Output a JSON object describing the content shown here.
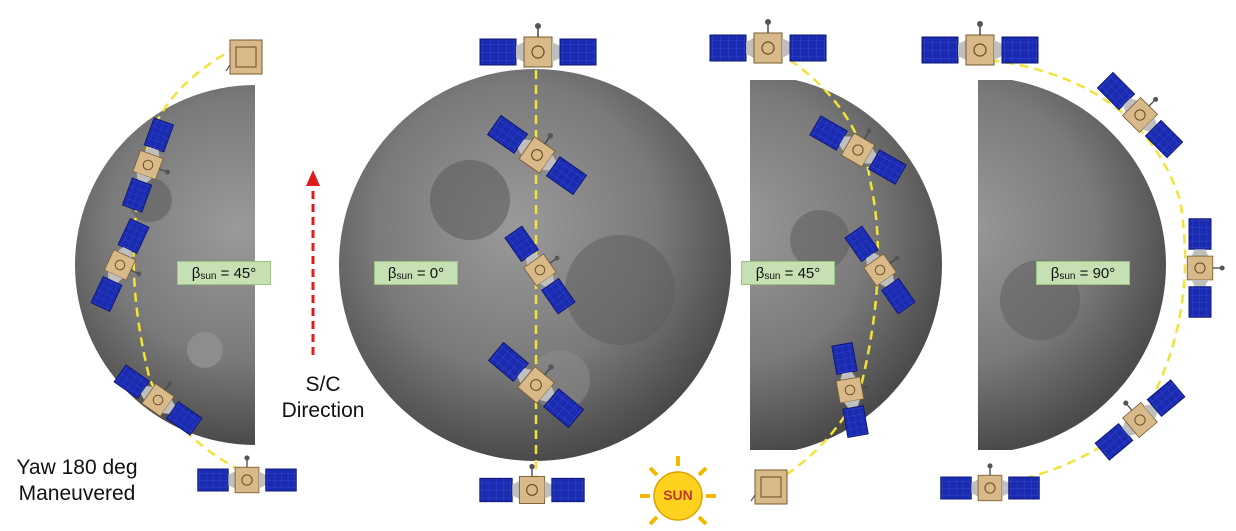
{
  "labels": {
    "beta_symbol": "β",
    "beta_sub": "sun",
    "panels": [
      {
        "id": "yaw",
        "beta_value": "= 45°"
      },
      {
        "id": "zero",
        "beta_value": "= 0°"
      },
      {
        "id": "fortyfive",
        "beta_value": "= 45°"
      },
      {
        "id": "ninety",
        "beta_value": "= 90°"
      }
    ],
    "direction_line1": "S/C",
    "direction_line2": "Direction",
    "yaw_line1": "Yaw 180 deg",
    "yaw_line2": "Maneuvered",
    "sun": "SUN"
  },
  "colors": {
    "moon": "#6f6f6f",
    "panel": "#1a2bb0",
    "bus": "#d7b98a",
    "path": "#f2e33a",
    "arrow": "#e01b1b",
    "label_bg": "#c6e0b4",
    "sun": "#ffd21f"
  }
}
